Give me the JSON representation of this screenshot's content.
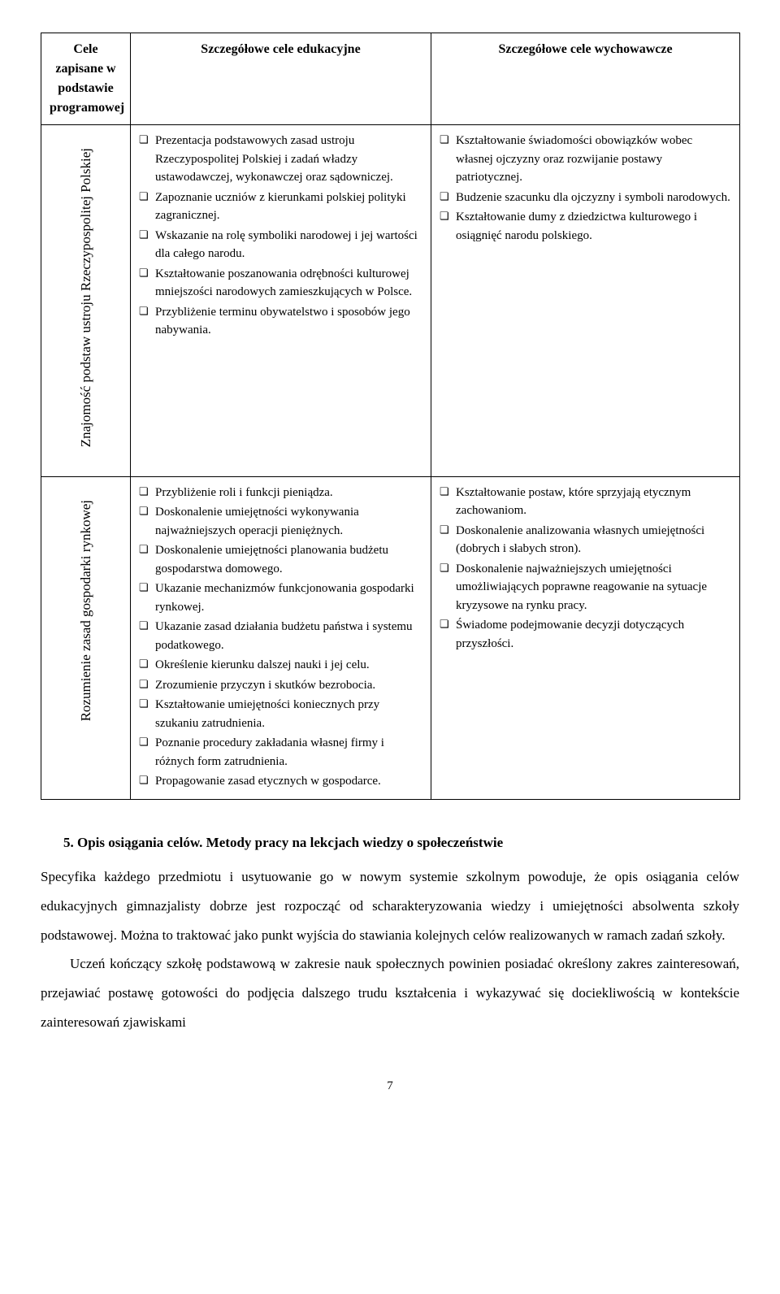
{
  "table": {
    "headers": {
      "col1": "Cele zapisane w podstawie programowej",
      "col2": "Szczegółowe cele edukacyjne",
      "col3": "Szczegółowe cele wychowawcze"
    },
    "row1": {
      "label": "Znajomość podstaw ustroju Rzeczypospolitej Polskiej",
      "edu": [
        "Prezentacja podstawowych zasad ustroju Rzeczypospolitej Polskiej i zadań władzy ustawodawczej, wykonawczej oraz sądowniczej.",
        "Zapoznanie uczniów z kierunkami polskiej polityki zagranicznej.",
        "Wskazanie na rolę symboliki narodowej i jej wartości dla całego narodu.",
        "Kształtowanie poszanowania odrębności kulturowej mniejszości narodowych zamieszkujących w Polsce.",
        "Przybliżenie terminu obywatelstwo i sposobów jego nabywania."
      ],
      "wych": [
        "Kształtowanie świadomości obowiązków wobec własnej ojczyzny oraz rozwijanie postawy patriotycznej.",
        "Budzenie szacunku dla ojczyzny i symboli narodowych.",
        "Kształtowanie dumy z dziedzictwa kulturowego i osiągnięć narodu polskiego."
      ]
    },
    "row2": {
      "label": "Rozumienie zasad gospodarki rynkowej",
      "edu": [
        "Przybliżenie roli i funkcji pieniądza.",
        "Doskonalenie umiejętności wykonywania najważniejszych operacji pieniężnych.",
        "Doskonalenie umiejętności planowania budżetu gospodarstwa domowego.",
        "Ukazanie mechanizmów funkcjonowania gospodarki rynkowej.",
        "Ukazanie zasad działania budżetu państwa i systemu podatkowego.",
        "Określenie kierunku dalszej nauki i jej celu.",
        "Zrozumienie przyczyn i skutków bezrobocia.",
        "Kształtowanie umiejętności koniecznych przy szukaniu zatrudnienia.",
        "Poznanie procedury zakładania własnej firmy i różnych form zatrudnienia.",
        "Propagowanie zasad etycznych w gospodarce."
      ],
      "wych": [
        "Kształtowanie postaw, które sprzyjają etycznym zachowaniom.",
        "Doskonalenie analizowania własnych umiejętności (dobrych i słabych stron).",
        "Doskonalenie najważniejszych umiejętności umożliwiających poprawne reagowanie na sytuacje kryzysowe na rynku pracy.",
        "Świadome podejmowanie decyzji dotyczących przyszłości."
      ]
    }
  },
  "section": {
    "heading": "5.  Opis osiągania celów. Metody pracy na lekcjach wiedzy o społeczeństwie",
    "para1": "Specyfika każdego przedmiotu i usytuowanie go w nowym systemie szkolnym powoduje, że opis osiągania celów edukacyjnych gimnazjalisty dobrze jest rozpocząć od scharakteryzowania wiedzy i umiejętności absolwenta szkoły podstawowej. Można to traktować jako punkt wyjścia do stawiania kolejnych celów realizowanych w ramach zadań szkoły.",
    "para2": "Uczeń kończący szkołę podstawową w zakresie nauk społecznych powinien posiadać określony zakres zainteresowań, przejawiać postawę gotowości do podjęcia dalszego trudu kształcenia i wykazywać się dociekliwością w kontekście zainteresowań zjawiskami"
  },
  "pageNumber": "7"
}
